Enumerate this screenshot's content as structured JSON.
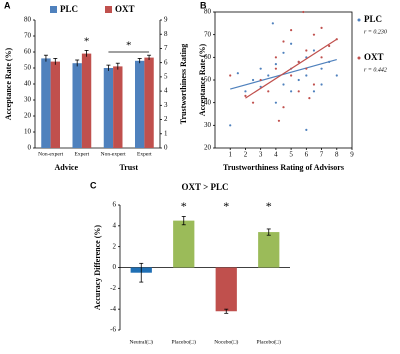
{
  "panel_labels": [
    "A",
    "B",
    "C"
  ],
  "chart_data": [
    {
      "type": "bar",
      "legend": true,
      "categories": [
        "Non-expert",
        "Expert",
        "Non-expert",
        "Expert"
      ],
      "groups": [
        "Advice",
        "Trust"
      ],
      "ylabel": "Acceptance  Rate (%)",
      "y2label": "Trustworthiness  Rating",
      "ylim": [
        0,
        80
      ],
      "yticks": [
        0,
        10,
        20,
        30,
        40,
        50,
        60,
        70,
        80
      ],
      "y2lim": [
        0,
        9
      ],
      "y2ticks": [
        0,
        1,
        2,
        3,
        4,
        5,
        6,
        7,
        8,
        9
      ],
      "series": [
        {
          "name": "PLC",
          "color": "#4f81bd",
          "values": [
            56,
            53,
            50,
            54.5
          ],
          "errors": [
            2,
            2,
            1.8,
            1.5
          ]
        },
        {
          "name": "OXT",
          "color": "#c0504d",
          "values": [
            54,
            59,
            51,
            56.5
          ],
          "errors": [
            2,
            2,
            2,
            1.5
          ]
        }
      ],
      "annotations": [
        "*",
        "*"
      ]
    },
    {
      "type": "scatter",
      "xlabel": "Trustworthiness  Rating  of  Advisors",
      "ylabel": "Acceptance  Rate (%)",
      "xlim": [
        0,
        9
      ],
      "xticks": [
        1,
        2,
        3,
        4,
        5,
        6,
        7,
        8,
        9
      ],
      "ylim": [
        20,
        80
      ],
      "yticks": [
        20,
        30,
        40,
        50,
        60,
        70,
        80
      ],
      "series": [
        {
          "name": "PLC",
          "color": "#4f81bd",
          "note": "r = 0.230",
          "x": [
            1,
            2,
            2.5,
            3,
            3,
            3.5,
            4,
            4,
            4.5,
            4.5,
            5,
            5,
            5,
            5.5,
            5.5,
            6,
            6,
            6,
            6.5,
            6.5,
            7,
            7,
            7.5,
            8,
            3.8,
            1.5
          ],
          "values": [
            30,
            45,
            50,
            47,
            55,
            52,
            40,
            57,
            48,
            62,
            45,
            55,
            66,
            50,
            58,
            28,
            52,
            60,
            45,
            63,
            55,
            48,
            58,
            52,
            75,
            53
          ],
          "fit": {
            "x": [
              1,
              8
            ],
            "values": [
              46,
              59
            ]
          }
        },
        {
          "name": "OXT",
          "color": "#c0504d",
          "note": "r = 0.442",
          "x": [
            1,
            2,
            2.5,
            3,
            3.5,
            4,
            4,
            4.5,
            4.5,
            5,
            5,
            5.5,
            5.5,
            6,
            6,
            6.5,
            6.5,
            7,
            7,
            7.5,
            8,
            5.8,
            4.2,
            6.2
          ],
          "values": [
            52,
            43,
            40,
            50,
            45,
            55,
            60,
            38,
            67,
            52,
            72,
            58,
            45,
            63,
            55,
            70,
            48,
            60,
            73,
            65,
            68,
            80,
            32,
            42
          ],
          "fit": {
            "x": [
              2,
              8
            ],
            "values": [
              42,
              68
            ]
          }
        }
      ]
    },
    {
      "type": "bar",
      "title": "OXT > PLC",
      "ylabel": "Accuracy  Difference (%)",
      "categories": [
        "Neutral(□)",
        "Placebo(□)",
        "Nocebo(□)",
        "Placebo(□)"
      ],
      "values": [
        -0.5,
        4.5,
        -4.2,
        3.4
      ],
      "errors": [
        0.9,
        0.4,
        0.2,
        0.3
      ],
      "colors": [
        "#1f6fb4",
        "#9bbb59",
        "#c0504d",
        "#9bbb59"
      ],
      "ylim": [
        -6,
        6
      ],
      "yticks": [
        -6,
        -4,
        -2,
        0,
        2,
        4,
        6
      ],
      "annotations": [
        {
          "category": 1,
          "text": "*"
        },
        {
          "category": 2,
          "text": "*"
        },
        {
          "category": 3,
          "text": "*"
        }
      ]
    }
  ]
}
